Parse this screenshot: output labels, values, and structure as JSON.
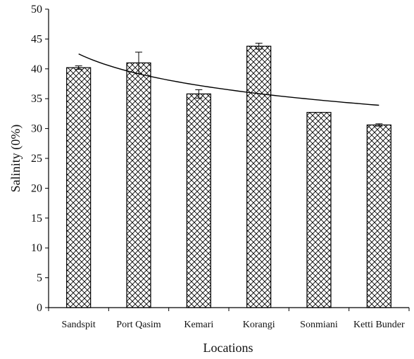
{
  "chart_data": {
    "type": "bar",
    "xlabel": "Locations",
    "ylabel": "Salinity (0%)",
    "ylim": [
      0,
      50
    ],
    "yticks": [
      0,
      5,
      10,
      15,
      20,
      25,
      30,
      35,
      40,
      45,
      50
    ],
    "grid": false,
    "legend": "none",
    "categories": [
      "Sandspit",
      "Port Qasim",
      "Kemari",
      "Korangi",
      "Sonmiani",
      "Ketti Bunder"
    ],
    "series": [
      {
        "values": [
          40.2,
          41.0,
          35.8,
          43.8,
          32.7,
          30.6
        ],
        "error": [
          0.3,
          1.8,
          0.7,
          0.5,
          0.0,
          0.2
        ]
      }
    ],
    "trendline": {
      "type": "logarithmic",
      "values": [
        42.5,
        39.3,
        37.2,
        35.8,
        34.8,
        33.9
      ]
    },
    "pattern": "crosshatch",
    "colors": {
      "bar_stroke": "#000000",
      "bar_fill": "#ffffff"
    }
  }
}
